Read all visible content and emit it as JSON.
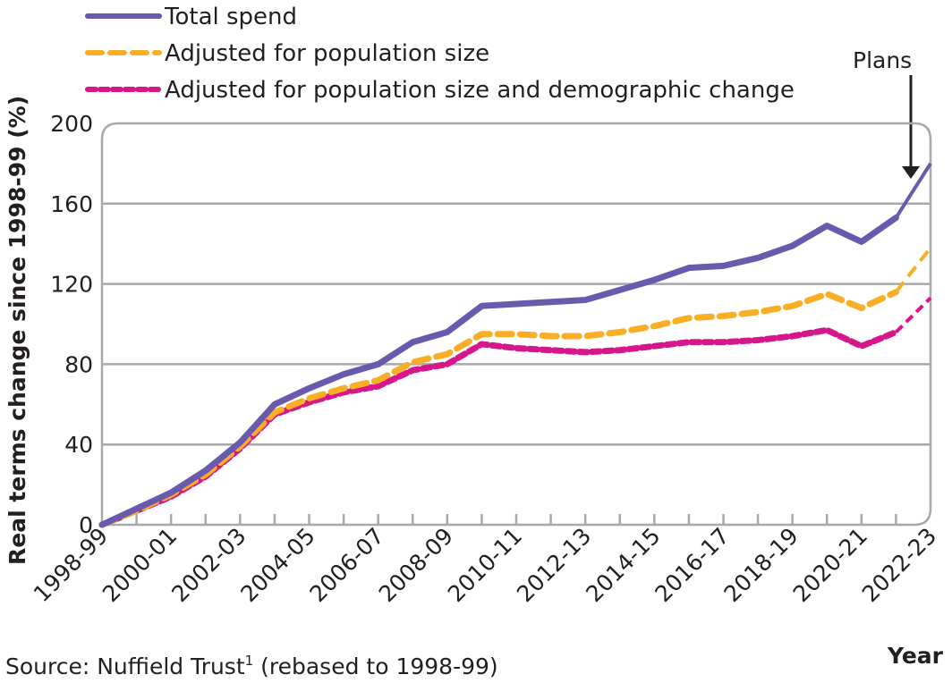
{
  "chart_data": {
    "type": "line",
    "title": "",
    "xlabel": "Year",
    "ylabel": "Real terms change since 1998-99 (%)",
    "ylim": [
      0,
      200
    ],
    "yticks": [
      0,
      40,
      80,
      120,
      160,
      200
    ],
    "ytick_labels": [
      "0",
      "40",
      "80",
      "120",
      "160",
      "200"
    ],
    "grid": true,
    "legend_position": "top-left",
    "x": [
      "1998-99",
      "1999-00",
      "2000-01",
      "2001-02",
      "2002-03",
      "2003-04",
      "2004-05",
      "2005-06",
      "2006-07",
      "2007-08",
      "2008-09",
      "2009-10",
      "2010-11",
      "2011-12",
      "2012-13",
      "2013-14",
      "2014-15",
      "2015-16",
      "2016-17",
      "2017-18",
      "2018-19",
      "2019-20",
      "2020-21",
      "2021-22",
      "2022-23"
    ],
    "xtick_labels": [
      "1998-99",
      "2000-01",
      "2002-03",
      "2004-05",
      "2006-07",
      "2008-09",
      "2010-11",
      "2012-13",
      "2014-15",
      "2016-17",
      "2018-19",
      "2020-21",
      "2022-23"
    ],
    "series": [
      {
        "name": "Total spend",
        "color": "#6a5aad",
        "style": "solid",
        "values": [
          0,
          8,
          16,
          27,
          41,
          60,
          68,
          75,
          80,
          91,
          96,
          109,
          110,
          111,
          112,
          117,
          122,
          128,
          129,
          133,
          139,
          149,
          141,
          153,
          180
        ]
      },
      {
        "name": "Adjusted for population size",
        "color": "#f9ae25",
        "style": "dashed",
        "values": [
          0,
          7,
          15,
          25,
          39,
          56,
          63,
          68,
          72,
          81,
          85,
          95,
          95,
          94,
          94,
          96,
          99,
          103,
          104,
          106,
          109,
          115,
          108,
          116,
          138
        ]
      },
      {
        "name": "Adjusted for population size and demographic change",
        "color": "#d6168b",
        "style": "dotted",
        "values": [
          0,
          7,
          14,
          24,
          38,
          55,
          61,
          66,
          69,
          77,
          80,
          90,
          88,
          87,
          86,
          87,
          89,
          91,
          91,
          92,
          94,
          97,
          89,
          96,
          113
        ]
      }
    ],
    "annotations": [
      {
        "text": "Plans",
        "target_x": "2021-22 to 2022-23",
        "arrow": "down"
      }
    ],
    "projection_start": "2021-22"
  },
  "source": {
    "prefix": "Source: Nuffield Trust",
    "superscript": "1",
    "suffix": " (rebased to 1998-99)"
  },
  "colors": {
    "grid": "#a7a9ac",
    "text": "#231f20"
  }
}
